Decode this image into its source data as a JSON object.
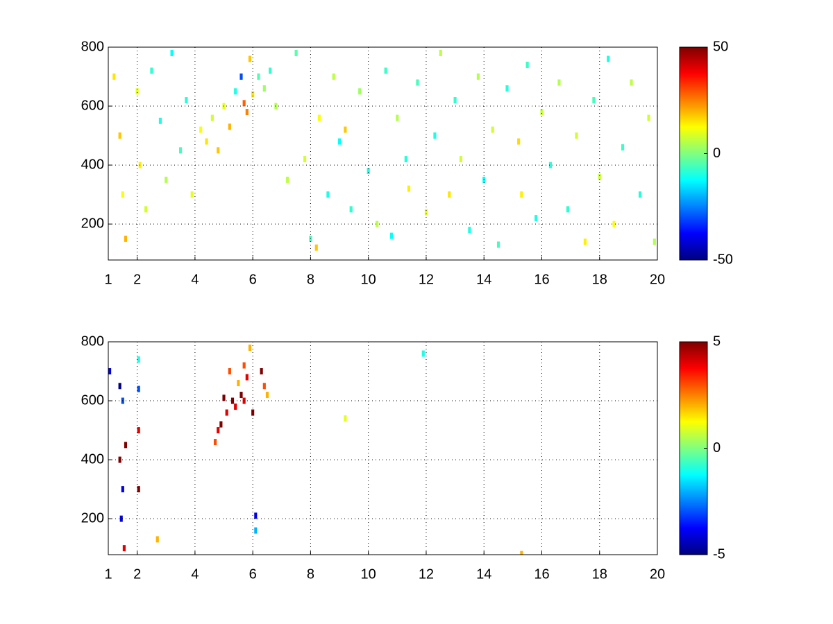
{
  "chart_data": [
    {
      "type": "heatmap",
      "colormap": "jet",
      "grid": true,
      "xlim": [
        1,
        20
      ],
      "xticks": [
        1,
        2,
        4,
        6,
        8,
        10,
        12,
        14,
        16,
        18,
        20
      ],
      "ylim": [
        78,
        800
      ],
      "yticks": [
        200,
        400,
        600,
        800
      ],
      "clim": [
        -50,
        50
      ],
      "cticks": [
        -50,
        0,
        50
      ],
      "x": [
        1.2,
        1.4,
        1.5,
        1.6,
        2.0,
        2.1,
        2.3,
        2.5,
        2.8,
        3.0,
        3.2,
        3.5,
        3.7,
        3.9,
        4.2,
        4.4,
        4.6,
        4.8,
        5.0,
        5.2,
        5.4,
        5.6,
        5.7,
        5.8,
        5.9,
        6.0,
        6.2,
        6.4,
        6.6,
        6.8,
        7.2,
        7.5,
        7.8,
        8.0,
        8.2,
        8.3,
        8.6,
        8.8,
        9.0,
        9.2,
        9.4,
        9.7,
        10.0,
        10.3,
        10.6,
        10.8,
        11.0,
        11.3,
        11.4,
        11.7,
        12.0,
        12.3,
        12.5,
        12.8,
        13.0,
        13.2,
        13.5,
        13.8,
        14.0,
        14.3,
        14.5,
        14.8,
        15.2,
        15.3,
        15.5,
        15.8,
        16.0,
        16.3,
        16.6,
        16.9,
        17.2,
        17.5,
        17.8,
        18.0,
        18.3,
        18.5,
        18.8,
        19.1,
        19.4,
        19.7,
        19.9
      ],
      "y": [
        700,
        500,
        300,
        150,
        650,
        400,
        250,
        720,
        550,
        350,
        780,
        450,
        620,
        300,
        520,
        480,
        560,
        450,
        600,
        530,
        650,
        700,
        610,
        580,
        760,
        640,
        700,
        660,
        720,
        600,
        350,
        780,
        420,
        150,
        120,
        560,
        300,
        700,
        480,
        520,
        250,
        650,
        380,
        200,
        720,
        160,
        560,
        420,
        320,
        680,
        240,
        500,
        780,
        300,
        620,
        420,
        180,
        700,
        350,
        520,
        130,
        660,
        480,
        300,
        740,
        220,
        580,
        400,
        680,
        250,
        500,
        140,
        620,
        360,
        760,
        200,
        460,
        680,
        300,
        560,
        140
      ],
      "values": [
        15,
        18,
        12,
        20,
        10,
        14,
        8,
        -8,
        -10,
        5,
        -12,
        -6,
        -9,
        10,
        12,
        15,
        8,
        18,
        10,
        20,
        -10,
        -30,
        28,
        25,
        18,
        15,
        -5,
        3,
        -8,
        5,
        6,
        -4,
        8,
        -6,
        18,
        12,
        -10,
        6,
        -12,
        18,
        -8,
        3,
        -10,
        6,
        -7,
        -12,
        5,
        -9,
        14,
        -6,
        10,
        -10,
        6,
        15,
        -8,
        8,
        -10,
        5,
        -12,
        8,
        -6,
        -9,
        16,
        14,
        -7,
        -10,
        7,
        -9,
        5,
        -8,
        8,
        14,
        -6,
        7,
        -10,
        12,
        -7,
        6,
        -9,
        8,
        5
      ]
    },
    {
      "type": "heatmap",
      "colormap": "jet",
      "grid": true,
      "xlim": [
        1,
        20
      ],
      "xticks": [
        1,
        2,
        4,
        6,
        8,
        10,
        12,
        14,
        16,
        18,
        20
      ],
      "ylim": [
        78,
        800
      ],
      "yticks": [
        200,
        400,
        600,
        800
      ],
      "clim": [
        -5,
        5
      ],
      "cticks": [
        -5,
        0,
        5
      ],
      "x": [
        1.05,
        1.4,
        1.4,
        1.45,
        1.5,
        1.55,
        1.6,
        1.5,
        2.05,
        2.05,
        2.05,
        2.05,
        2.7,
        4.7,
        4.8,
        4.9,
        5.0,
        5.1,
        5.2,
        5.3,
        5.4,
        5.5,
        5.6,
        5.7,
        5.7,
        5.8,
        5.9,
        6.0,
        6.1,
        6.1,
        6.3,
        6.4,
        6.5,
        9.2,
        11.9,
        15.3
      ],
      "y": [
        700,
        650,
        400,
        200,
        600,
        100,
        450,
        300,
        640,
        500,
        300,
        740,
        130,
        460,
        500,
        520,
        610,
        560,
        700,
        600,
        580,
        660,
        620,
        600,
        720,
        680,
        780,
        560,
        210,
        160,
        700,
        650,
        620,
        540,
        760,
        80
      ],
      "values": [
        -4,
        -5,
        5,
        -4,
        -3,
        4,
        5,
        -4,
        -3,
        4,
        5,
        -1,
        2,
        3,
        4,
        5,
        5,
        4,
        3,
        5,
        4,
        2,
        5,
        4,
        3,
        4,
        2,
        5,
        -4,
        -2,
        5,
        3,
        2,
        1,
        -1,
        2
      ]
    }
  ]
}
